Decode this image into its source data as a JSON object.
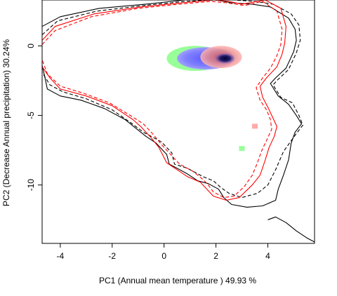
{
  "chart_data": {
    "type": "contour-density",
    "xlabel": "PC1 (Annual mean temperature ) 49.93 %",
    "ylabel": "PC2 (Decrease Annual precipitation) 30.24%",
    "xlim": [
      -4.7,
      5.8
    ],
    "ylim": [
      -14.2,
      3.3
    ],
    "x_ticks": [
      -4,
      -2,
      0,
      2,
      4
    ],
    "y_ticks": [
      0,
      -5,
      -10
    ],
    "x_tick_labels": [
      "-4",
      "-2",
      "0",
      "2",
      "4"
    ],
    "y_tick_labels": [
      "0",
      "-5",
      "-10"
    ],
    "colors": {
      "red_line": "#ff0000",
      "black_line": "#000000",
      "green_fill": "#99ff99",
      "blue_fill": "#8080ff",
      "dark_core": "#00004d",
      "red_fill": "#ff9999"
    },
    "grid": false,
    "legend": "none",
    "series": [
      {
        "role": "black-solid",
        "values": [
          [
            -4.7,
            1.4
          ],
          [
            -4.0,
            2.1
          ],
          [
            -2.5,
            2.7
          ],
          [
            -0.7,
            3.0
          ],
          [
            0.8,
            3.3
          ],
          [
            2.0,
            3.3
          ],
          [
            2.6,
            3.1
          ],
          [
            3.4,
            3.0
          ],
          [
            4.1,
            2.8
          ],
          [
            4.8,
            2.0
          ],
          [
            5.05,
            1.2
          ],
          [
            5.1,
            0.4
          ],
          [
            5.0,
            -0.4
          ],
          [
            4.85,
            -1.0
          ],
          [
            4.7,
            -1.6
          ],
          [
            4.3,
            -2.3
          ],
          [
            4.1,
            -2.7
          ],
          [
            4.4,
            -3.6
          ],
          [
            4.8,
            -4.2
          ],
          [
            5.1,
            -5.0
          ],
          [
            5.3,
            -5.6
          ],
          [
            5.05,
            -6.2
          ],
          [
            4.9,
            -7.0
          ],
          [
            4.8,
            -8.2
          ],
          [
            4.6,
            -9.3
          ],
          [
            4.4,
            -10.3
          ],
          [
            4.3,
            -11.1
          ],
          [
            3.8,
            -11.5
          ],
          [
            3.2,
            -11.6
          ],
          [
            2.6,
            -11.4
          ],
          [
            2.3,
            -10.9
          ],
          [
            2.1,
            -10.3
          ],
          [
            1.7,
            -9.9
          ],
          [
            1.3,
            -9.7
          ],
          [
            0.9,
            -9.2
          ],
          [
            0.5,
            -8.8
          ],
          [
            0.2,
            -8.5
          ],
          [
            0.1,
            -7.8
          ],
          [
            -0.3,
            -7.0
          ],
          [
            -0.7,
            -6.5
          ],
          [
            -1.1,
            -5.9
          ],
          [
            -1.5,
            -5.3
          ],
          [
            -2.3,
            -4.5
          ],
          [
            -3.2,
            -3.9
          ],
          [
            -4.0,
            -3.6
          ],
          [
            -4.5,
            -3.1
          ],
          [
            -4.6,
            -2.2
          ],
          [
            -4.7,
            -1.4
          ]
        ]
      },
      {
        "role": "black-dashed",
        "values": [
          [
            -4.7,
            0.8
          ],
          [
            -4.1,
            1.8
          ],
          [
            -2.6,
            2.5
          ],
          [
            -0.8,
            2.9
          ],
          [
            0.8,
            3.2
          ],
          [
            2.0,
            3.3
          ],
          [
            2.7,
            3.3
          ],
          [
            3.5,
            3.2
          ],
          [
            4.2,
            3.0
          ],
          [
            4.9,
            2.3
          ],
          [
            5.2,
            1.5
          ],
          [
            5.25,
            0.4
          ],
          [
            5.1,
            -0.5
          ],
          [
            4.95,
            -1.1
          ],
          [
            4.8,
            -1.7
          ],
          [
            4.4,
            -2.4
          ],
          [
            4.2,
            -2.8
          ],
          [
            4.5,
            -3.7
          ],
          [
            4.95,
            -4.1
          ],
          [
            5.2,
            -5.0
          ],
          [
            5.35,
            -5.7
          ],
          [
            5.1,
            -6.3
          ],
          [
            4.6,
            -7.6
          ],
          [
            4.3,
            -8.9
          ],
          [
            4.0,
            -10.0
          ],
          [
            3.6,
            -10.6
          ],
          [
            3.0,
            -10.9
          ],
          [
            2.5,
            -10.6
          ],
          [
            2.2,
            -10.2
          ],
          [
            1.9,
            -9.7
          ],
          [
            1.5,
            -9.4
          ],
          [
            0.9,
            -8.8
          ],
          [
            0.4,
            -8.5
          ],
          [
            0.3,
            -7.7
          ],
          [
            -0.1,
            -6.9
          ],
          [
            -0.8,
            -6.2
          ],
          [
            -1.3,
            -5.5
          ],
          [
            -2.0,
            -4.6
          ],
          [
            -3.0,
            -3.8
          ],
          [
            -3.9,
            -3.3
          ],
          [
            -4.4,
            -2.8
          ],
          [
            -4.7,
            -1.9
          ]
        ]
      },
      {
        "role": "red-solid",
        "values": [
          [
            -4.7,
            0.4
          ],
          [
            -4.2,
            1.4
          ],
          [
            -2.7,
            2.3
          ],
          [
            -0.9,
            2.8
          ],
          [
            0.7,
            3.1
          ],
          [
            1.9,
            3.3
          ],
          [
            2.5,
            3.2
          ],
          [
            3.0,
            3.0
          ],
          [
            3.9,
            3.3
          ],
          [
            4.5,
            2.7
          ],
          [
            4.7,
            1.4
          ],
          [
            4.65,
            0.2
          ],
          [
            4.55,
            -0.6
          ],
          [
            4.35,
            -1.5
          ],
          [
            3.95,
            -2.3
          ],
          [
            3.7,
            -2.9
          ],
          [
            3.8,
            -3.7
          ],
          [
            4.0,
            -4.4
          ],
          [
            4.2,
            -5.2
          ],
          [
            4.35,
            -5.8
          ],
          [
            4.25,
            -6.5
          ],
          [
            4.05,
            -7.3
          ],
          [
            3.9,
            -8.2
          ],
          [
            3.7,
            -9.3
          ],
          [
            3.4,
            -10.0
          ],
          [
            2.9,
            -10.9
          ],
          [
            2.4,
            -11.1
          ],
          [
            1.9,
            -10.8
          ],
          [
            1.6,
            -10.2
          ],
          [
            1.4,
            -9.8
          ],
          [
            0.9,
            -9.4
          ],
          [
            0.5,
            -8.9
          ],
          [
            0.1,
            -8.4
          ],
          [
            -0.2,
            -7.3
          ],
          [
            -0.5,
            -6.6
          ],
          [
            -0.9,
            -5.8
          ],
          [
            -1.2,
            -5.3
          ],
          [
            -2.0,
            -4.3
          ],
          [
            -3.0,
            -3.6
          ],
          [
            -4.0,
            -3.1
          ],
          [
            -4.4,
            -2.3
          ],
          [
            -4.7,
            -1.5
          ]
        ]
      },
      {
        "role": "red-dashed",
        "values": [
          [
            -4.7,
            0.1
          ],
          [
            -4.2,
            1.1
          ],
          [
            -2.8,
            2.1
          ],
          [
            -1.0,
            2.7
          ],
          [
            0.6,
            3.0
          ],
          [
            1.8,
            3.2
          ],
          [
            2.4,
            3.1
          ],
          [
            3.1,
            2.9
          ],
          [
            3.8,
            3.2
          ],
          [
            4.35,
            2.5
          ],
          [
            4.55,
            1.2
          ],
          [
            4.5,
            0.1
          ],
          [
            4.35,
            -0.7
          ],
          [
            4.1,
            -1.6
          ],
          [
            3.8,
            -2.3
          ],
          [
            3.55,
            -3.0
          ],
          [
            3.7,
            -3.9
          ],
          [
            3.95,
            -4.6
          ],
          [
            4.1,
            -5.3
          ],
          [
            4.15,
            -6.0
          ],
          [
            3.95,
            -6.8
          ],
          [
            3.75,
            -7.6
          ],
          [
            3.6,
            -8.4
          ],
          [
            3.4,
            -9.3
          ],
          [
            3.1,
            -10.1
          ],
          [
            2.7,
            -10.8
          ],
          [
            2.3,
            -10.9
          ],
          [
            1.9,
            -10.5
          ],
          [
            1.7,
            -10.0
          ],
          [
            1.5,
            -9.6
          ],
          [
            1.1,
            -9.0
          ],
          [
            0.6,
            -8.5
          ],
          [
            0.3,
            -7.9
          ],
          [
            -0.1,
            -7.1
          ],
          [
            -0.4,
            -6.4
          ],
          [
            -0.8,
            -5.6
          ],
          [
            -1.3,
            -5.0
          ],
          [
            -2.1,
            -4.1
          ],
          [
            -3.1,
            -3.4
          ],
          [
            -4.0,
            -2.9
          ],
          [
            -4.5,
            -2.0
          ],
          [
            -4.7,
            -1.0
          ]
        ]
      },
      {
        "role": "black-solid-fragment",
        "values": [
          [
            4.0,
            -12.5
          ],
          [
            4.3,
            -12.3
          ],
          [
            4.7,
            -12.7
          ],
          [
            5.1,
            -13.3
          ],
          [
            5.5,
            -13.8
          ],
          [
            5.8,
            -14.1
          ]
        ]
      }
    ],
    "density_regions": [
      {
        "role": "green",
        "center": [
          1.2,
          -0.9
        ],
        "radius": [
          1.1,
          0.9
        ]
      },
      {
        "role": "blue",
        "center": [
          1.6,
          -0.9
        ],
        "radius": [
          1.1,
          0.8
        ]
      },
      {
        "role": "red",
        "center": [
          2.2,
          -0.8
        ],
        "radius": [
          0.8,
          0.8
        ]
      },
      {
        "role": "dark_core",
        "center": [
          2.35,
          -0.9
        ],
        "radius": [
          0.4,
          0.4
        ]
      }
    ],
    "isolated_cells": [
      {
        "role": "red",
        "x": 3.5,
        "y": -5.8
      },
      {
        "role": "green",
        "x": 3.0,
        "y": -7.4
      }
    ]
  }
}
